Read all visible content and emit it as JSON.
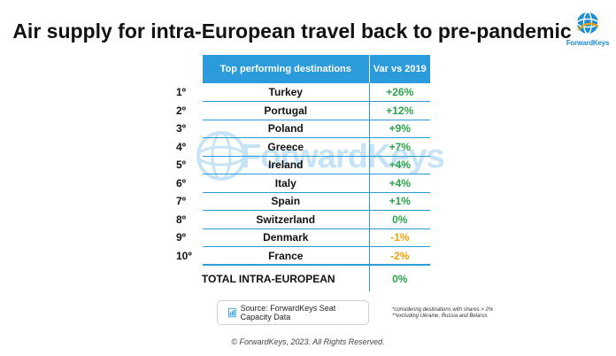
{
  "title": "Air supply for intra-European travel back to pre-pandemic",
  "logo": {
    "text": "ForwardKeys"
  },
  "watermark": {
    "text": "ForwardKeys"
  },
  "table": {
    "header": {
      "destinations": "Top performing destinations",
      "variation": "Var vs 2019"
    },
    "rows": [
      {
        "rank": "1º",
        "destination": "Turkey",
        "variation": "+26%"
      },
      {
        "rank": "2º",
        "destination": "Portugal",
        "variation": "+12%"
      },
      {
        "rank": "3º",
        "destination": "Poland",
        "variation": "+9%"
      },
      {
        "rank": "4º",
        "destination": "Greece",
        "variation": "+7%"
      },
      {
        "rank": "5º",
        "destination": "Ireland",
        "variation": "+4%"
      },
      {
        "rank": "6º",
        "destination": "Italy",
        "variation": "+4%"
      },
      {
        "rank": "7º",
        "destination": "Spain",
        "variation": "+1%"
      },
      {
        "rank": "8º",
        "destination": "Switzerland",
        "variation": "0%"
      },
      {
        "rank": "9º",
        "destination": "Denmark",
        "variation": "-1%"
      },
      {
        "rank": "10º",
        "destination": "France",
        "variation": "-2%"
      }
    ],
    "total": {
      "label": "TOTAL INTRA-EUROPEAN",
      "variation": "0%"
    }
  },
  "colors": {
    "accent": "#2b9bdc",
    "positive": "#2aa44a",
    "negative": "#f0a202"
  },
  "source": {
    "icon": "document-chart-icon",
    "text": "Source: ForwardKeys Seat Capacity Data"
  },
  "footnotes": [
    "*considering destinations with shares > 2%",
    "**excluding Ukraine, Russia and Belarus"
  ],
  "copyright": "© ForwardKeys, 2023. All Rights Reserved."
}
